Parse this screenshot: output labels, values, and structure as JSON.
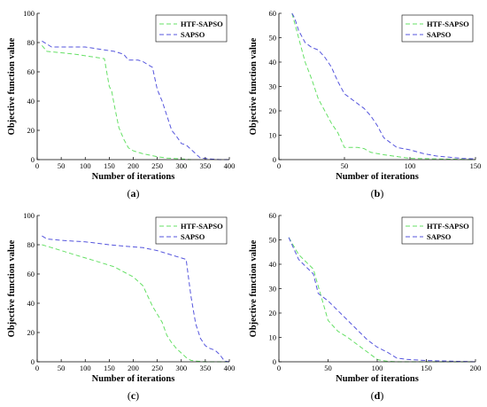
{
  "chart_data": [
    {
      "type": "line",
      "panel_label": "a",
      "xlabel": "Number of iterations",
      "ylabel": "Objective function value",
      "xlim": [
        0,
        400
      ],
      "ylim": [
        0,
        100
      ],
      "xticks": [
        0,
        50,
        100,
        150,
        200,
        250,
        300,
        350,
        400
      ],
      "yticks": [
        0,
        20,
        40,
        60,
        80,
        100
      ],
      "legend": "top-right",
      "series": [
        {
          "name": "HTF-SAPSO",
          "color": "#66e066",
          "x": [
            10,
            20,
            50,
            80,
            100,
            120,
            140,
            150,
            155,
            160,
            170,
            180,
            190,
            200,
            220,
            250,
            270,
            300,
            320
          ],
          "y": [
            78,
            74,
            73,
            72,
            71,
            70,
            69,
            50,
            47,
            38,
            22,
            14,
            8,
            6,
            4,
            2,
            1,
            0.5,
            0
          ]
        },
        {
          "name": "SAPSO",
          "color": "#5555dd",
          "x": [
            10,
            20,
            30,
            50,
            80,
            100,
            120,
            140,
            160,
            170,
            180,
            190,
            200,
            210,
            220,
            230,
            240,
            250,
            260,
            270,
            280,
            290,
            300,
            310,
            320,
            330,
            340,
            350,
            360,
            380,
            400
          ],
          "y": [
            81,
            79,
            77,
            77,
            77,
            77,
            76,
            75,
            74,
            73,
            72,
            68,
            68,
            68,
            67,
            65,
            63,
            48,
            40,
            30,
            20,
            16,
            11,
            10,
            7,
            4,
            1,
            0.8,
            0.5,
            0,
            0
          ]
        }
      ]
    },
    {
      "type": "line",
      "panel_label": "b",
      "xlabel": "Number of iterations",
      "ylabel": "Objective function value",
      "xlim": [
        0,
        150
      ],
      "ylim": [
        0,
        60
      ],
      "xticks": [
        0,
        50,
        100,
        150
      ],
      "yticks": [
        0,
        10,
        20,
        30,
        40,
        50,
        60
      ],
      "legend": "top-right",
      "series": [
        {
          "name": "HTF-SAPSO",
          "color": "#66e066",
          "x": [
            10,
            15,
            20,
            25,
            30,
            35,
            40,
            45,
            50,
            60,
            65,
            70,
            80,
            100,
            150
          ],
          "y": [
            60,
            50,
            40,
            33,
            25,
            20,
            15,
            11,
            5,
            5,
            4.5,
            3,
            2,
            0.5,
            0
          ]
        },
        {
          "name": "SAPSO",
          "color": "#5555dd",
          "x": [
            10,
            12,
            15,
            20,
            25,
            30,
            35,
            40,
            45,
            50,
            55,
            60,
            65,
            70,
            75,
            80,
            85,
            90,
            100,
            110,
            120,
            130,
            140,
            150
          ],
          "y": [
            60,
            58,
            53,
            48,
            46,
            45,
            42,
            38,
            32,
            27,
            25,
            23,
            21,
            18,
            14,
            9,
            7,
            5,
            4,
            2.5,
            1.5,
            1,
            0.5,
            0.3
          ]
        }
      ]
    },
    {
      "type": "line",
      "panel_label": "c",
      "xlabel": "Number of iterations",
      "ylabel": "Objective function value",
      "xlim": [
        0,
        400
      ],
      "ylim": [
        0,
        100
      ],
      "xticks": [
        0,
        50,
        100,
        150,
        200,
        250,
        300,
        350,
        400
      ],
      "yticks": [
        0,
        20,
        40,
        60,
        80,
        100
      ],
      "legend": "top-right",
      "series": [
        {
          "name": "HTF-SAPSO",
          "color": "#66e066",
          "x": [
            10,
            40,
            80,
            120,
            160,
            200,
            220,
            240,
            260,
            270,
            280,
            290,
            300,
            310,
            320,
            330,
            350,
            400
          ],
          "y": [
            80,
            77,
            73,
            69,
            65,
            58,
            52,
            38,
            27,
            18,
            13,
            9,
            6,
            3,
            1,
            0.5,
            0,
            0
          ]
        },
        {
          "name": "SAPSO",
          "color": "#5555dd",
          "x": [
            10,
            20,
            50,
            100,
            150,
            180,
            220,
            250,
            280,
            300,
            310,
            320,
            330,
            340,
            350,
            360,
            370,
            380,
            390,
            400
          ],
          "y": [
            86,
            84,
            83,
            82,
            80,
            79,
            78,
            76,
            73,
            71,
            70,
            45,
            26,
            16,
            11,
            9,
            8,
            5,
            0.5,
            0
          ]
        }
      ]
    },
    {
      "type": "line",
      "panel_label": "d",
      "xlabel": "Number of iterations",
      "ylabel": "Objective function value",
      "xlim": [
        0,
        200
      ],
      "ylim": [
        0,
        60
      ],
      "xticks": [
        0,
        50,
        100,
        150,
        200
      ],
      "yticks": [
        0,
        10,
        20,
        30,
        40,
        50,
        60
      ],
      "legend": "top-right",
      "series": [
        {
          "name": "HTF-SAPSO",
          "color": "#66e066",
          "x": [
            10,
            20,
            30,
            35,
            40,
            50,
            60,
            70,
            80,
            90,
            100,
            105,
            110,
            120,
            150,
            200
          ],
          "y": [
            51,
            44,
            40,
            38,
            31,
            17,
            12.5,
            10,
            7,
            4,
            1,
            0.5,
            0.2,
            0,
            0,
            0
          ]
        },
        {
          "name": "SAPSO",
          "color": "#5555dd",
          "x": [
            10,
            20,
            30,
            35,
            40,
            50,
            60,
            70,
            80,
            90,
            100,
            110,
            120,
            130,
            150,
            200
          ],
          "y": [
            51,
            42,
            38,
            36,
            28,
            25,
            21,
            17,
            13,
            9,
            6,
            4,
            1.5,
            1,
            0.5,
            0
          ]
        }
      ]
    }
  ]
}
